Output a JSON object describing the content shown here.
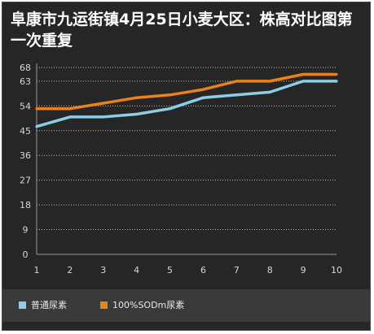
{
  "chart_data": {
    "type": "line",
    "title": "阜康市九运街镇4月25日小麦大区：株高对比图第一次重复",
    "xlabel": "",
    "ylabel": "",
    "x": [
      1,
      2,
      3,
      4,
      5,
      6,
      7,
      8,
      9,
      10
    ],
    "y_ticks": [
      0,
      9,
      18,
      27,
      36,
      45,
      54,
      63,
      68
    ],
    "ylim": [
      0,
      68
    ],
    "grid": true,
    "legend_position": "bottom-left",
    "series": [
      {
        "name": "普通尿素",
        "color": "#8ccde8",
        "values": [
          46.5,
          50,
          50,
          51,
          53,
          57,
          58,
          59,
          63,
          63
        ]
      },
      {
        "name": "100%SODm尿素",
        "color": "#e8821e",
        "values": [
          53,
          53,
          55,
          57,
          58,
          60,
          63,
          63,
          65.5,
          65.5
        ]
      }
    ]
  }
}
